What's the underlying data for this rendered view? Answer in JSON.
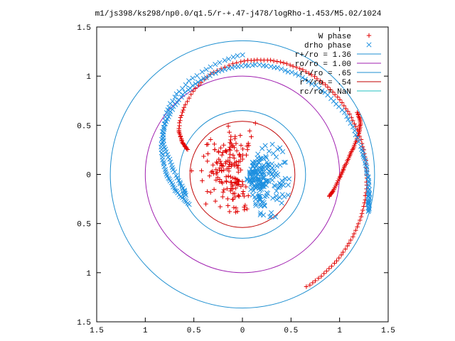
{
  "chart_data": {
    "type": "scatter",
    "title": "m1/js398/ks298/np0.0/q1.5/r-+.47-j478/logRho-1.453/M5.02/1024",
    "xlabel": "",
    "ylabel": "",
    "xlim": [
      -1.5,
      1.5
    ],
    "ylim": [
      -1.5,
      1.5
    ],
    "x_tick_labels": [
      "1.5",
      "1",
      "0.5",
      "0",
      "0.5",
      "1",
      "1.5"
    ],
    "y_tick_labels": [
      "1.5",
      "1",
      "0.5",
      "0",
      "0.5",
      "1",
      "1.5"
    ],
    "tick_values": [
      -1.5,
      -1,
      -0.5,
      0,
      0.5,
      1,
      1.5
    ],
    "grid": false,
    "legend_position": "top-right",
    "series": [
      {
        "name": "W phase",
        "kind": "points",
        "marker": "plus",
        "color": "#e00000",
        "outer_arm": {
          "r": [
            0.62,
            0.7,
            0.8,
            0.92,
            1.06,
            1.15,
            1.2,
            1.23,
            1.25,
            1.26,
            1.27,
            1.28,
            1.29,
            1.3,
            1.31,
            1.32
          ],
          "theta_deg": [
            156,
            152,
            145,
            130,
            110,
            90,
            75,
            60,
            45,
            30,
            15,
            0,
            -15,
            -30,
            -45,
            -60
          ],
          "count": 140
        },
        "inner_arm": {
          "r": [
            0.92,
            0.95,
            1.0,
            1.05,
            1.12,
            1.2,
            1.28,
            1.33,
            1.34
          ],
          "theta_deg": [
            -14,
            -10,
            -2,
            4,
            10,
            15,
            20,
            24,
            28
          ],
          "count": 60
        },
        "cloud": {
          "r_max": 0.53,
          "count": 170
        }
      },
      {
        "name": "drho phase",
        "kind": "points",
        "marker": "x",
        "color": "#1e90e0",
        "outer_arm": {
          "r": [
            0.62,
            0.7,
            0.78,
            0.86,
            0.93,
            0.99,
            1.04,
            1.08,
            1.12,
            1.15,
            1.18,
            1.22,
            1.25,
            1.28,
            1.31,
            1.33,
            1.35
          ],
          "theta_deg": [
            209,
            194,
            180,
            165,
            150,
            135,
            118,
            101,
            84,
            66,
            48,
            30,
            12,
            2,
            -7,
            -12,
            -16
          ],
          "count": 150
        },
        "inner_arm": {
          "r": [
            0.62,
            0.62,
            0.66,
            0.72,
            0.78,
            0.86,
            0.93,
            0.99,
            1.04,
            1.08,
            1.12,
            1.17,
            1.22
          ],
          "theta_deg": [
            200,
            194,
            185,
            175,
            167,
            160,
            152,
            142,
            134,
            124,
            112,
            100,
            90
          ],
          "count": 55
        },
        "cloud": {
          "r_max": 0.52,
          "count": 190
        }
      },
      {
        "name": "r+/ro = 1.36",
        "kind": "circle",
        "radius": 1.36,
        "color": "#1e8fd0"
      },
      {
        "name": "ro/ro = 1.00",
        "kind": "circle",
        "radius": 1.0,
        "color": "#a020b0"
      },
      {
        "name": "r-/ro = .65",
        "kind": "circle",
        "radius": 0.65,
        "color": "#1e8fd0"
      },
      {
        "name": "r*/ro = .54",
        "kind": "circle",
        "radius": 0.54,
        "color": "#c00000"
      },
      {
        "name": "rc/ro = NaN",
        "kind": "circle",
        "radius": null,
        "color": "#20c0c0"
      }
    ]
  }
}
